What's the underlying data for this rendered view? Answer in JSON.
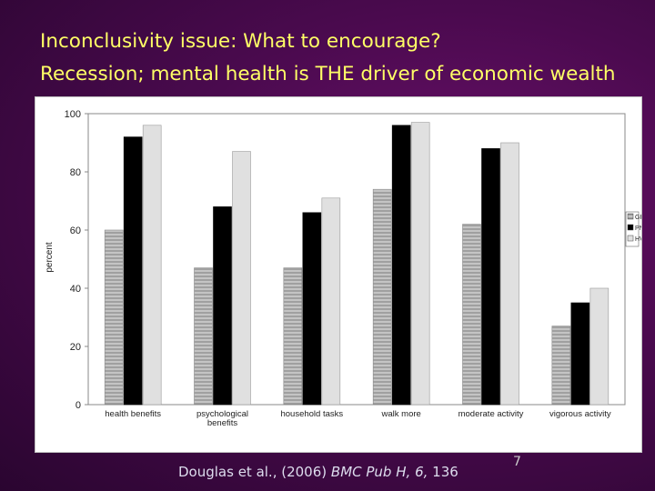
{
  "slide": {
    "title_line1": "Inconclusivity issue: What to encourage?",
    "title_line2": "Recession; mental health is THE driver of economic wealth",
    "citation_authors": "Douglas et al., (2006)",
    "citation_journal": "BMC Pub H,",
    "citation_volume": "6,",
    "citation_pages": "136",
    "page_number": "7"
  },
  "colors": {
    "background": "#4a0a4e",
    "title": "#ffff66",
    "GP": "#bdbdbd",
    "PN": "#000000",
    "HV": "#e0e0e0"
  },
  "chart_data": {
    "type": "bar",
    "title": "",
    "xlabel": "",
    "ylabel": "percent",
    "ylim": [
      0,
      100
    ],
    "yticks": [
      0,
      20,
      40,
      60,
      80,
      100
    ],
    "grid": false,
    "legend_position": "right",
    "categories": [
      "health benefits",
      "psychological benefits",
      "household tasks",
      "walk more",
      "moderate activity",
      "vigorous activity"
    ],
    "category_labels": [
      [
        "health benefits"
      ],
      [
        "psychological",
        "benefits"
      ],
      [
        "household tasks"
      ],
      [
        "walk more"
      ],
      [
        "moderate activity"
      ],
      [
        "vigorous activity"
      ]
    ],
    "series": [
      {
        "name": "GP",
        "values": [
          60,
          47,
          47,
          74,
          62,
          27
        ]
      },
      {
        "name": "PN",
        "values": [
          92,
          68,
          66,
          96,
          88,
          35
        ]
      },
      {
        "name": "HV",
        "values": [
          96,
          87,
          71,
          97,
          90,
          40
        ]
      }
    ]
  }
}
